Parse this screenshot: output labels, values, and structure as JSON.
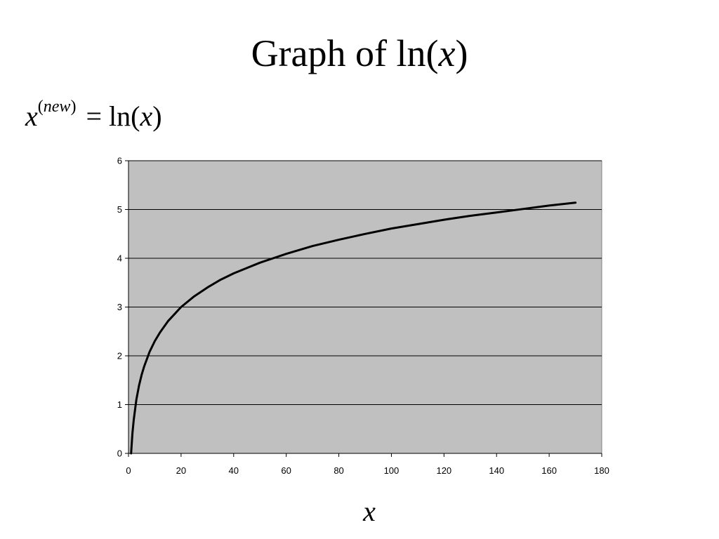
{
  "slide": {
    "title_prefix": "Graph of ln(",
    "title_var": "x",
    "title_suffix": ")",
    "equation": {
      "lhs_var": "x",
      "superscript_open": "(",
      "superscript_var": "new",
      "superscript_close": ")",
      "equals": "=",
      "rhs_prefix": "ln(",
      "rhs_var": "x",
      "rhs_suffix": ")"
    }
  },
  "chart_data": {
    "type": "line",
    "title": "",
    "xlabel": "x",
    "ylabel": "",
    "xlim": [
      0,
      180
    ],
    "ylim": [
      0,
      6
    ],
    "x_ticks": [
      0,
      20,
      40,
      60,
      80,
      100,
      120,
      140,
      160,
      180
    ],
    "y_ticks": [
      0,
      1,
      2,
      3,
      4,
      5,
      6
    ],
    "grid": "horizontal",
    "legend": "none",
    "plot_background": "#c0c0c0",
    "line_color": "#000000",
    "series": [
      {
        "function": "ln(x)",
        "x": [
          1,
          1.5,
          2,
          3,
          4,
          5,
          6,
          8,
          10,
          12,
          15,
          20,
          25,
          30,
          35,
          40,
          50,
          60,
          70,
          80,
          90,
          100,
          110,
          120,
          130,
          140,
          150,
          160,
          170
        ],
        "y": [
          0,
          0.41,
          0.69,
          1.1,
          1.39,
          1.61,
          1.79,
          2.08,
          2.3,
          2.48,
          2.71,
          3.0,
          3.22,
          3.4,
          3.56,
          3.69,
          3.91,
          4.09,
          4.25,
          4.38,
          4.5,
          4.61,
          4.7,
          4.79,
          4.87,
          4.94,
          5.01,
          5.08,
          5.14
        ]
      }
    ]
  }
}
